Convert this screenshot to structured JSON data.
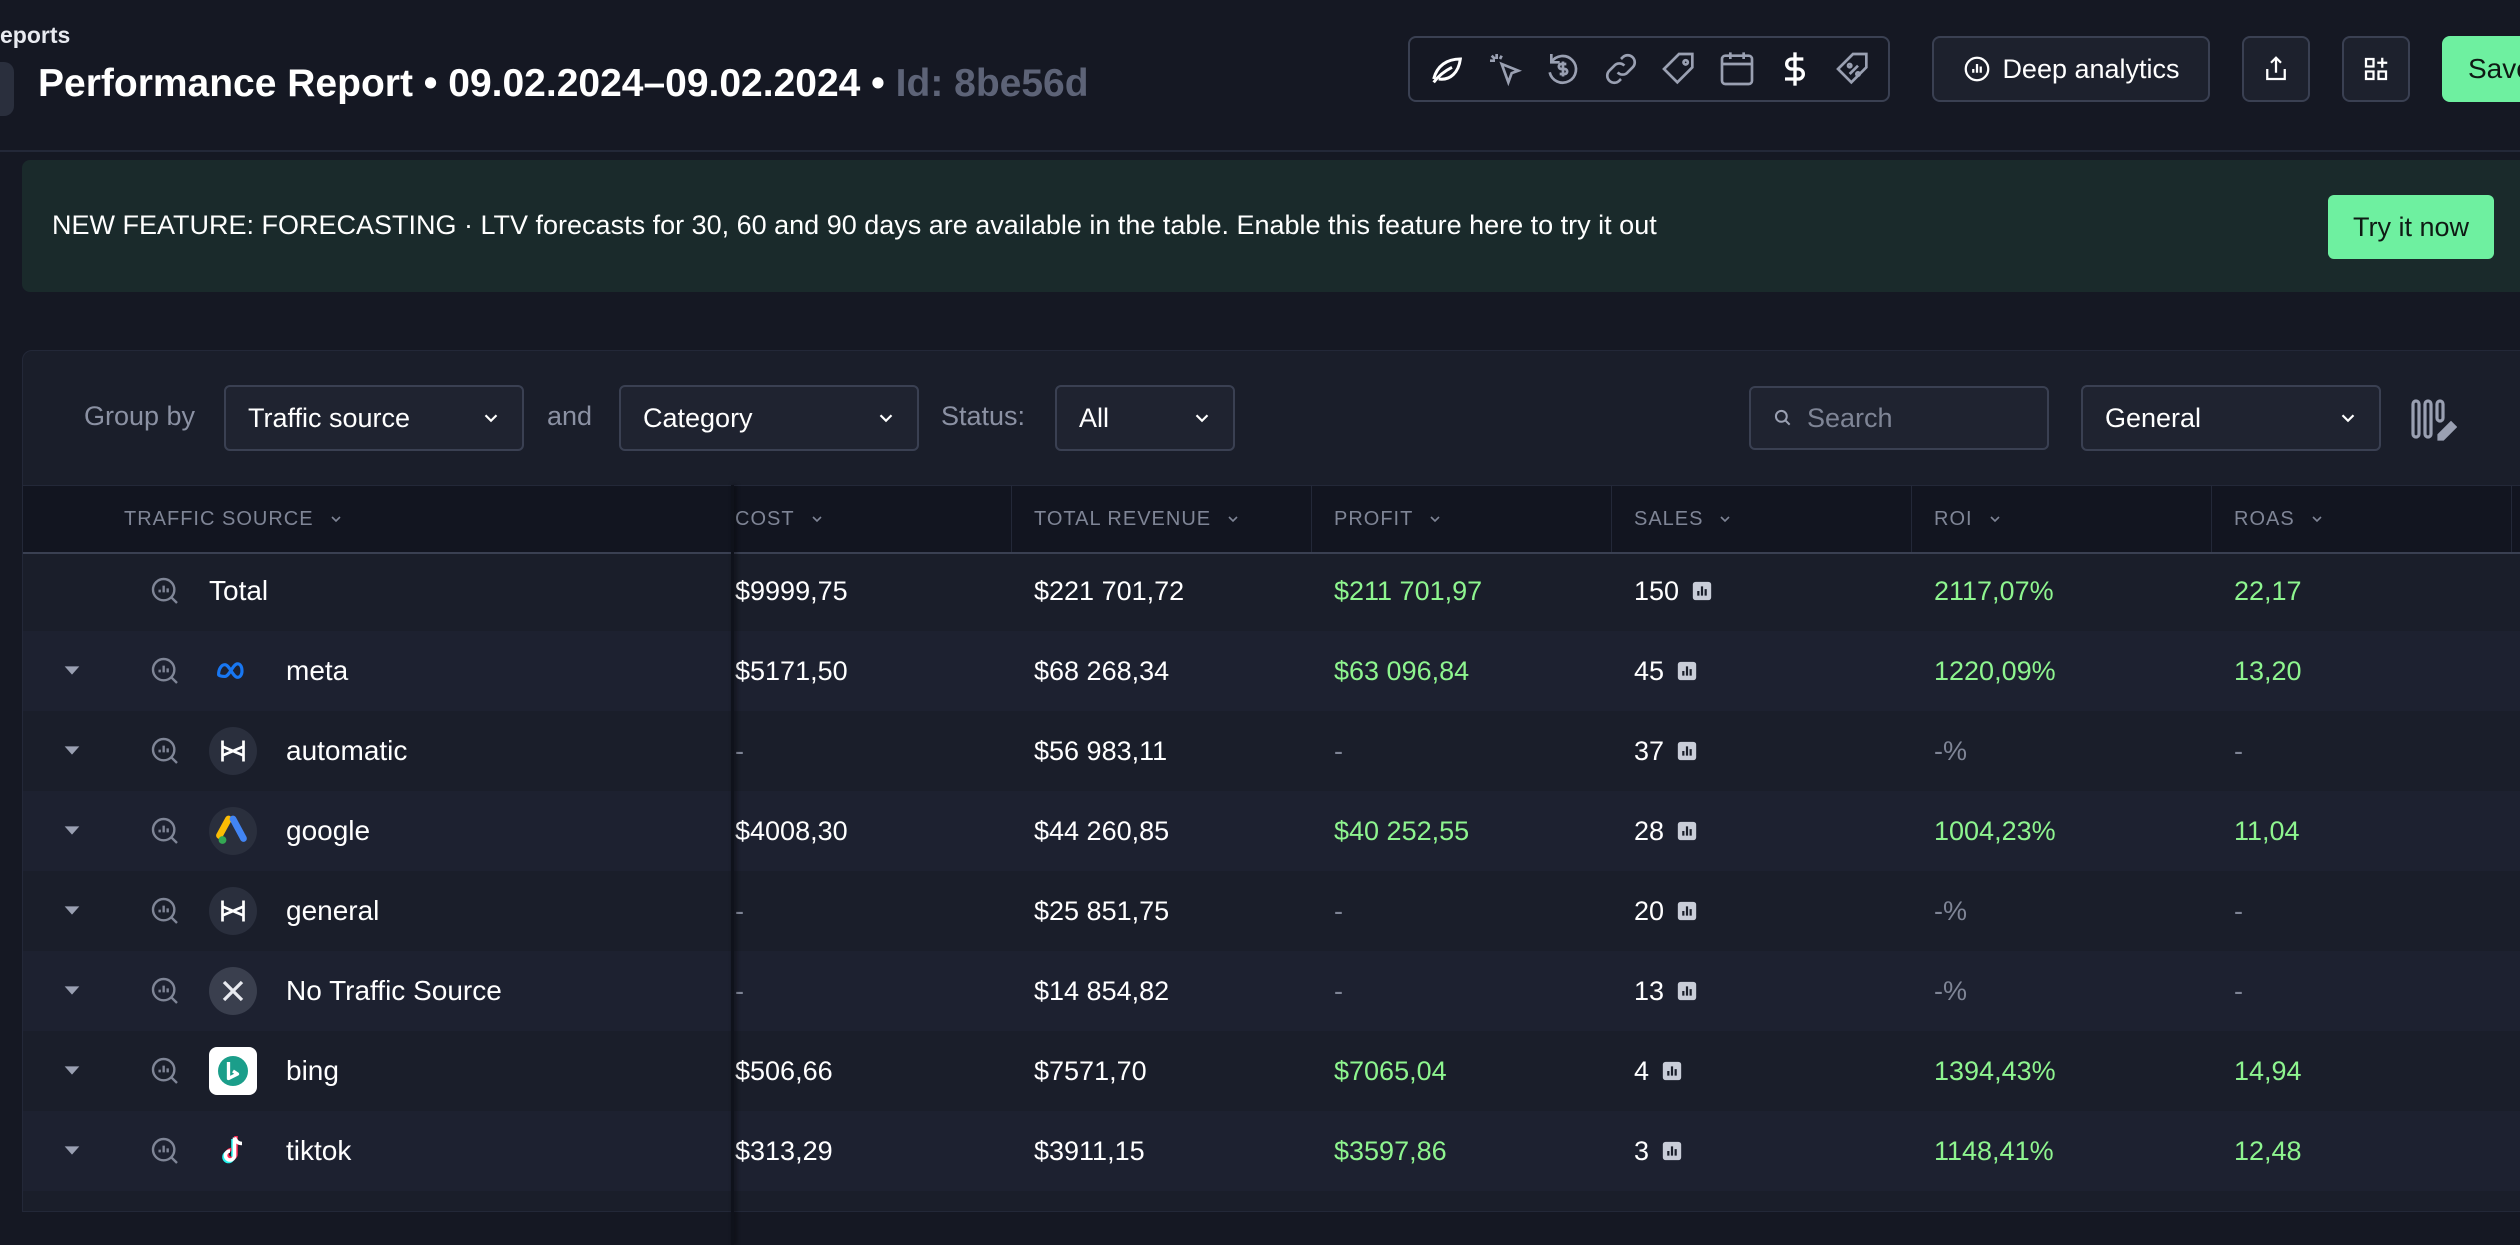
{
  "header": {
    "breadcrumb": "eports",
    "title": "Performance Report • 09.02.2024–09.02.2024 • ",
    "report_id": "Id: 8be56d",
    "toolbar_icons": [
      "leaf-icon",
      "cursor-click-icon",
      "refund-icon",
      "link-icon",
      "tag-icon",
      "calendar-icon",
      "dollar-icon",
      "discount-tag-icon"
    ],
    "deep_analytics_label": "Deep analytics",
    "save_label": "Save"
  },
  "banner": {
    "text": "NEW FEATURE: FORECASTING · LTV forecasts for 30, 60 and 90 days are available in the table. Enable this feature here to try it out",
    "button_label": "Try it now"
  },
  "filters": {
    "group_by_label": "Group by",
    "group_by_value": "Traffic source",
    "and_label": "and",
    "secondary_value": "Category",
    "status_label": "Status:",
    "status_value": "All",
    "search_placeholder": "Search",
    "view_value": "General"
  },
  "table": {
    "columns": [
      "TRAFFIC SOURCE",
      "COST",
      "TOTAL REVENUE",
      "PROFIT",
      "SALES",
      "ROI",
      "ROAS"
    ],
    "total": {
      "label": "Total",
      "cost": "$9999,75",
      "revenue": "$221 701,72",
      "profit": "$211 701,97",
      "sales": "150",
      "roi": "2117,07%",
      "roas": "22,17"
    },
    "rows": [
      {
        "name": "meta",
        "logo": "meta-logo-icon",
        "cost": "$5171,50",
        "revenue": "$68 268,34",
        "profit": "$63 096,84",
        "sales": "45",
        "roi": "1220,09%",
        "roas": "13,20"
      },
      {
        "name": "automatic",
        "logo": "automatic-logo-icon",
        "cost": "-",
        "revenue": "$56 983,11",
        "profit": "-",
        "sales": "37",
        "roi": "-%",
        "roas": "-"
      },
      {
        "name": "google",
        "logo": "google-ads-logo-icon",
        "cost": "$4008,30",
        "revenue": "$44 260,85",
        "profit": "$40 252,55",
        "sales": "28",
        "roi": "1004,23%",
        "roas": "11,04"
      },
      {
        "name": "general",
        "logo": "general-logo-icon",
        "cost": "-",
        "revenue": "$25 851,75",
        "profit": "-",
        "sales": "20",
        "roi": "-%",
        "roas": "-"
      },
      {
        "name": "No Traffic Source",
        "logo": "close-icon",
        "cost": "-",
        "revenue": "$14 854,82",
        "profit": "-",
        "sales": "13",
        "roi": "-%",
        "roas": "-"
      },
      {
        "name": "bing",
        "logo": "bing-logo-icon",
        "cost": "$506,66",
        "revenue": "$7571,70",
        "profit": "$7065,04",
        "sales": "4",
        "roi": "1394,43%",
        "roas": "14,94"
      },
      {
        "name": "tiktok",
        "logo": "tiktok-logo-icon",
        "cost": "$313,29",
        "revenue": "$3911,15",
        "profit": "$3597,86",
        "sales": "3",
        "roi": "1148,41%",
        "roas": "12,48"
      }
    ]
  },
  "colors": {
    "background": "#151823",
    "accent_green": "#6ef0a0",
    "positive_text": "#8ef58f",
    "muted_text": "#7f8596"
  }
}
